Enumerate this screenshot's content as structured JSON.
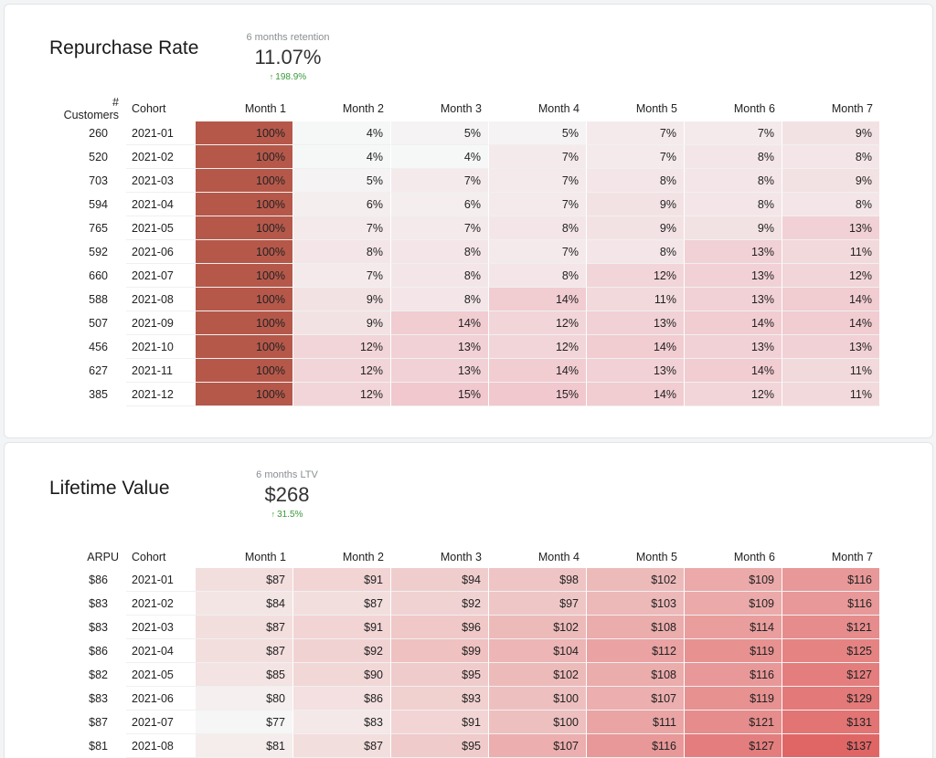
{
  "colors": {
    "accent_retention": "#b5584a",
    "accent_ltv": "#e06a6a",
    "delta_positive": "#3a9a3a"
  },
  "retention": {
    "title": "Repurchase Rate",
    "kpi_label": "6 months retention",
    "kpi_value": "11.07%",
    "kpi_delta": "198.9%",
    "count_header": "# Customers",
    "cohort_header": "Cohort",
    "month_headers": [
      "Month 1",
      "Month 2",
      "Month 3",
      "Month 4",
      "Month 5",
      "Month 6",
      "Month 7"
    ],
    "rows": [
      {
        "count": "260",
        "cohort": "2021-01",
        "values": [
          "100%",
          "4%",
          "5%",
          "5%",
          "7%",
          "7%",
          "9%"
        ],
        "levels": [
          100,
          4,
          5,
          5,
          7,
          7,
          9
        ]
      },
      {
        "count": "520",
        "cohort": "2021-02",
        "values": [
          "100%",
          "4%",
          "4%",
          "7%",
          "7%",
          "8%",
          "8%"
        ],
        "levels": [
          100,
          4,
          4,
          7,
          7,
          8,
          8
        ]
      },
      {
        "count": "703",
        "cohort": "2021-03",
        "values": [
          "100%",
          "5%",
          "7%",
          "7%",
          "8%",
          "8%",
          "9%"
        ],
        "levels": [
          100,
          5,
          7,
          7,
          8,
          8,
          9
        ]
      },
      {
        "count": "594",
        "cohort": "2021-04",
        "values": [
          "100%",
          "6%",
          "6%",
          "7%",
          "9%",
          "8%",
          "8%"
        ],
        "levels": [
          100,
          6,
          6,
          7,
          9,
          8,
          8
        ]
      },
      {
        "count": "765",
        "cohort": "2021-05",
        "values": [
          "100%",
          "7%",
          "7%",
          "8%",
          "9%",
          "9%",
          "13%"
        ],
        "levels": [
          100,
          7,
          7,
          8,
          9,
          9,
          13
        ]
      },
      {
        "count": "592",
        "cohort": "2021-06",
        "values": [
          "100%",
          "8%",
          "8%",
          "7%",
          "8%",
          "13%",
          "11%"
        ],
        "levels": [
          100,
          8,
          8,
          7,
          8,
          13,
          11
        ]
      },
      {
        "count": "660",
        "cohort": "2021-07",
        "values": [
          "100%",
          "7%",
          "8%",
          "8%",
          "12%",
          "13%",
          "12%"
        ],
        "levels": [
          100,
          7,
          8,
          8,
          12,
          13,
          12
        ]
      },
      {
        "count": "588",
        "cohort": "2021-08",
        "values": [
          "100%",
          "9%",
          "8%",
          "14%",
          "11%",
          "13%",
          "14%"
        ],
        "levels": [
          100,
          9,
          8,
          14,
          11,
          13,
          14
        ]
      },
      {
        "count": "507",
        "cohort": "2021-09",
        "values": [
          "100%",
          "9%",
          "14%",
          "12%",
          "13%",
          "14%",
          "14%"
        ],
        "levels": [
          100,
          9,
          14,
          12,
          13,
          14,
          14
        ]
      },
      {
        "count": "456",
        "cohort": "2021-10",
        "values": [
          "100%",
          "12%",
          "13%",
          "12%",
          "14%",
          "13%",
          "13%"
        ],
        "levels": [
          100,
          12,
          13,
          12,
          14,
          13,
          13
        ]
      },
      {
        "count": "627",
        "cohort": "2021-11",
        "values": [
          "100%",
          "12%",
          "13%",
          "14%",
          "13%",
          "14%",
          "11%"
        ],
        "levels": [
          100,
          12,
          13,
          14,
          13,
          14,
          11
        ]
      },
      {
        "count": "385",
        "cohort": "2021-12",
        "values": [
          "100%",
          "12%",
          "15%",
          "15%",
          "14%",
          "12%",
          "11%"
        ],
        "levels": [
          100,
          12,
          15,
          15,
          14,
          12,
          11
        ]
      }
    ]
  },
  "ltv": {
    "title": "Lifetime Value",
    "kpi_label": "6 months LTV",
    "kpi_value": "$268",
    "kpi_delta": "31.5%",
    "count_header": "ARPU",
    "cohort_header": "Cohort",
    "month_headers": [
      "Month 1",
      "Month 2",
      "Month 3",
      "Month 4",
      "Month 5",
      "Month 6",
      "Month 7"
    ],
    "rows": [
      {
        "count": "$86",
        "cohort": "2021-01",
        "values": [
          "$87",
          "$91",
          "$94",
          "$98",
          "$102",
          "$109",
          "$116"
        ],
        "levels": [
          87,
          91,
          94,
          98,
          102,
          109,
          116
        ]
      },
      {
        "count": "$83",
        "cohort": "2021-02",
        "values": [
          "$84",
          "$87",
          "$92",
          "$97",
          "$103",
          "$109",
          "$116"
        ],
        "levels": [
          84,
          87,
          92,
          97,
          103,
          109,
          116
        ]
      },
      {
        "count": "$83",
        "cohort": "2021-03",
        "values": [
          "$87",
          "$91",
          "$96",
          "$102",
          "$108",
          "$114",
          "$121"
        ],
        "levels": [
          87,
          91,
          96,
          102,
          108,
          114,
          121
        ]
      },
      {
        "count": "$86",
        "cohort": "2021-04",
        "values": [
          "$87",
          "$92",
          "$99",
          "$104",
          "$112",
          "$119",
          "$125"
        ],
        "levels": [
          87,
          92,
          99,
          104,
          112,
          119,
          125
        ]
      },
      {
        "count": "$82",
        "cohort": "2021-05",
        "values": [
          "$85",
          "$90",
          "$95",
          "$102",
          "$108",
          "$116",
          "$127"
        ],
        "levels": [
          85,
          90,
          95,
          102,
          108,
          116,
          127
        ]
      },
      {
        "count": "$83",
        "cohort": "2021-06",
        "values": [
          "$80",
          "$86",
          "$93",
          "$100",
          "$107",
          "$119",
          "$129"
        ],
        "levels": [
          80,
          86,
          93,
          100,
          107,
          119,
          129
        ]
      },
      {
        "count": "$87",
        "cohort": "2021-07",
        "values": [
          "$77",
          "$83",
          "$91",
          "$100",
          "$111",
          "$121",
          "$131"
        ],
        "levels": [
          77,
          83,
          91,
          100,
          111,
          121,
          131
        ]
      },
      {
        "count": "$81",
        "cohort": "2021-08",
        "values": [
          "$81",
          "$87",
          "$95",
          "$107",
          "$116",
          "$127",
          "$137"
        ],
        "levels": [
          81,
          87,
          95,
          107,
          116,
          127,
          137
        ]
      }
    ]
  }
}
